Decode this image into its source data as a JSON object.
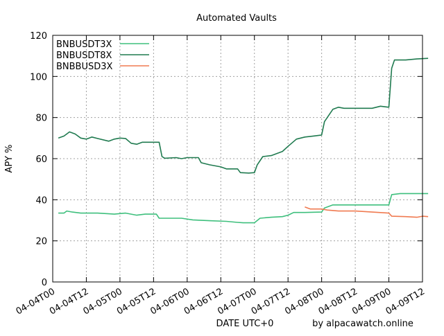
{
  "chart_data": {
    "type": "line",
    "title": "Automated Vaults",
    "xlabel": "DATE UTC+0",
    "ylabel": "APY %",
    "credit": "by alpacawatch.online",
    "ylim": [
      0,
      120
    ],
    "yticks": [
      0,
      20,
      40,
      60,
      80,
      100,
      120
    ],
    "xlim": [
      "2023-04-04T00:00",
      "2023-04-09T12:00"
    ],
    "xtick_labels": [
      "04-04T00",
      "04-04T12",
      "04-05T00",
      "04-05T12",
      "04-06T00",
      "04-06T12",
      "04-07T00",
      "04-07T12",
      "04-08T00",
      "04-08T12",
      "04-09T00",
      "04-09T12"
    ],
    "grid": true,
    "legend_position": "top-left",
    "series": [
      {
        "name": "BNBUSDT3X",
        "color": "#3dbf7c",
        "points": [
          [
            "2023-04-04T02:00",
            33.5
          ],
          [
            "2023-04-04T04:00",
            33.5
          ],
          [
            "2023-04-04T05:00",
            34.5
          ],
          [
            "2023-04-04T07:00",
            34.0
          ],
          [
            "2023-04-04T10:00",
            33.5
          ],
          [
            "2023-04-04T16:00",
            33.5
          ],
          [
            "2023-04-04T22:00",
            33.0
          ],
          [
            "2023-04-05T02:00",
            33.5
          ],
          [
            "2023-04-05T04:00",
            33.0
          ],
          [
            "2023-04-05T06:00",
            32.5
          ],
          [
            "2023-04-05T09:00",
            33.0
          ],
          [
            "2023-04-05T13:00",
            33.0
          ],
          [
            "2023-04-05T14:00",
            31.0
          ],
          [
            "2023-04-05T22:00",
            31.0
          ],
          [
            "2023-04-06T02:00",
            30.2
          ],
          [
            "2023-04-06T08:00",
            29.8
          ],
          [
            "2023-04-06T14:00",
            29.5
          ],
          [
            "2023-04-06T18:00",
            29.0
          ],
          [
            "2023-04-06T20:00",
            28.8
          ],
          [
            "2023-04-07T00:00",
            28.8
          ],
          [
            "2023-04-07T02:00",
            31.0
          ],
          [
            "2023-04-07T06:00",
            31.5
          ],
          [
            "2023-04-07T10:00",
            31.8
          ],
          [
            "2023-04-07T12:00",
            32.5
          ],
          [
            "2023-04-07T14:00",
            33.8
          ],
          [
            "2023-04-07T18:00",
            33.8
          ],
          [
            "2023-04-08T00:00",
            34.0
          ],
          [
            "2023-04-08T01:00",
            36.0
          ],
          [
            "2023-04-08T04:00",
            37.5
          ],
          [
            "2023-04-08T12:00",
            37.5
          ],
          [
            "2023-04-08T18:00",
            37.5
          ],
          [
            "2023-04-09T00:00",
            37.5
          ],
          [
            "2023-04-09T01:00",
            42.5
          ],
          [
            "2023-04-09T04:00",
            43.0
          ],
          [
            "2023-04-09T08:00",
            43.0
          ],
          [
            "2023-04-09T14:00",
            43.0
          ]
        ]
      },
      {
        "name": "BNBUSDT8X",
        "color": "#1f7a4f",
        "points": [
          [
            "2023-04-04T02:00",
            70.0
          ],
          [
            "2023-04-04T04:00",
            71.0
          ],
          [
            "2023-04-04T06:00",
            73.0
          ],
          [
            "2023-04-04T08:00",
            72.0
          ],
          [
            "2023-04-04T10:00",
            70.0
          ],
          [
            "2023-04-04T12:00",
            69.5
          ],
          [
            "2023-04-04T14:00",
            70.5
          ],
          [
            "2023-04-04T16:00",
            69.8
          ],
          [
            "2023-04-04T20:00",
            68.5
          ],
          [
            "2023-04-04T22:00",
            69.5
          ],
          [
            "2023-04-05T00:00",
            70.0
          ],
          [
            "2023-04-05T02:00",
            69.8
          ],
          [
            "2023-04-05T04:00",
            67.5
          ],
          [
            "2023-04-05T06:00",
            67.0
          ],
          [
            "2023-04-05T08:00",
            68.0
          ],
          [
            "2023-04-05T14:00",
            68.0
          ],
          [
            "2023-04-05T15:00",
            61.0
          ],
          [
            "2023-04-05T16:00",
            60.2
          ],
          [
            "2023-04-05T20:00",
            60.5
          ],
          [
            "2023-04-05T22:00",
            60.0
          ],
          [
            "2023-04-06T00:00",
            60.5
          ],
          [
            "2023-04-06T04:00",
            60.5
          ],
          [
            "2023-04-06T05:00",
            58.0
          ],
          [
            "2023-04-06T08:00",
            57.0
          ],
          [
            "2023-04-06T12:00",
            56.0
          ],
          [
            "2023-04-06T14:00",
            55.0
          ],
          [
            "2023-04-06T18:00",
            55.0
          ],
          [
            "2023-04-06T19:00",
            53.2
          ],
          [
            "2023-04-06T22:00",
            53.0
          ],
          [
            "2023-04-07T00:00",
            53.2
          ],
          [
            "2023-04-07T01:00",
            57.0
          ],
          [
            "2023-04-07T03:00",
            61.0
          ],
          [
            "2023-04-07T06:00",
            61.5
          ],
          [
            "2023-04-07T08:00",
            62.5
          ],
          [
            "2023-04-07T10:00",
            63.5
          ],
          [
            "2023-04-07T12:00",
            66.0
          ],
          [
            "2023-04-07T15:00",
            69.5
          ],
          [
            "2023-04-07T18:00",
            70.5
          ],
          [
            "2023-04-07T21:00",
            71.0
          ],
          [
            "2023-04-08T00:00",
            71.5
          ],
          [
            "2023-04-08T01:00",
            78.0
          ],
          [
            "2023-04-08T02:00",
            80.0
          ],
          [
            "2023-04-08T04:00",
            84.0
          ],
          [
            "2023-04-08T06:00",
            85.0
          ],
          [
            "2023-04-08T08:00",
            84.5
          ],
          [
            "2023-04-08T12:00",
            84.5
          ],
          [
            "2023-04-08T18:00",
            84.5
          ],
          [
            "2023-04-08T21:00",
            85.5
          ],
          [
            "2023-04-09T00:00",
            85.0
          ],
          [
            "2023-04-09T01:00",
            104.0
          ],
          [
            "2023-04-09T02:00",
            108.0
          ],
          [
            "2023-04-09T06:00",
            108.0
          ],
          [
            "2023-04-09T10:00",
            108.5
          ],
          [
            "2023-04-09T14:00",
            108.8
          ]
        ]
      },
      {
        "name": "BNBBUSD3X",
        "color": "#f07a50",
        "points": [
          [
            "2023-04-07T18:00",
            36.5
          ],
          [
            "2023-04-07T19:00",
            36.0
          ],
          [
            "2023-04-07T20:00",
            35.5
          ],
          [
            "2023-04-08T00:00",
            35.5
          ],
          [
            "2023-04-08T02:00",
            35.0
          ],
          [
            "2023-04-08T06:00",
            34.5
          ],
          [
            "2023-04-08T12:00",
            34.5
          ],
          [
            "2023-04-08T18:00",
            34.0
          ],
          [
            "2023-04-09T00:00",
            33.5
          ],
          [
            "2023-04-09T01:00",
            32.0
          ],
          [
            "2023-04-09T06:00",
            31.8
          ],
          [
            "2023-04-09T10:00",
            31.5
          ],
          [
            "2023-04-09T12:00",
            32.0
          ],
          [
            "2023-04-09T14:00",
            31.8
          ]
        ]
      }
    ]
  }
}
